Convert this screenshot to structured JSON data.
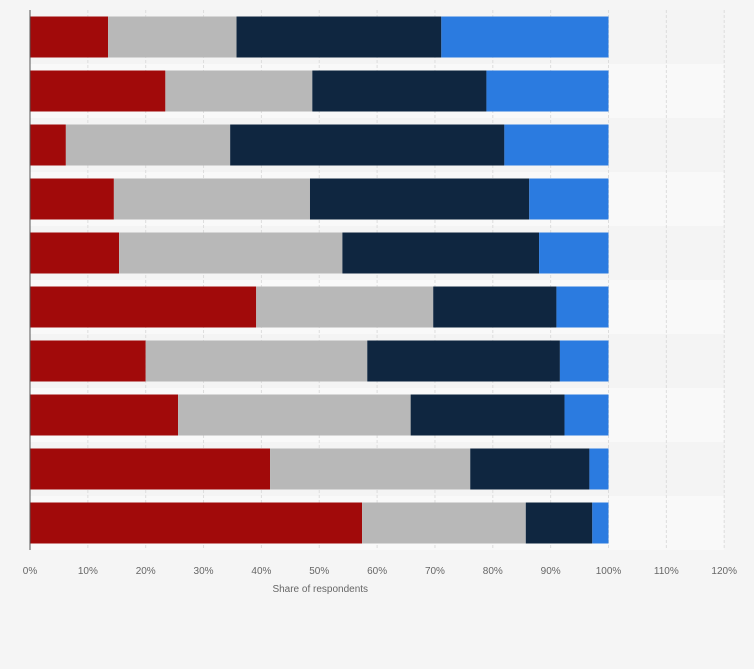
{
  "chart_data": {
    "type": "bar",
    "orientation": "horizontal",
    "stacked": true,
    "title": "",
    "xlabel": "Share of respondents",
    "ylabel": "",
    "xlim": [
      0,
      120
    ],
    "ticks": [
      0,
      10,
      20,
      30,
      40,
      50,
      60,
      70,
      80,
      90,
      100,
      110,
      120
    ],
    "tick_labels": [
      "0%",
      "10%",
      "20%",
      "30%",
      "40%",
      "50%",
      "60%",
      "70%",
      "80%",
      "90%",
      "100%",
      "110%",
      "120%"
    ],
    "categories": [
      "",
      "",
      "",
      "",
      "",
      "",
      "",
      "",
      "",
      ""
    ],
    "series": [
      {
        "name": "",
        "color": "#a10a0a",
        "values": [
          13.5,
          23.4,
          6.2,
          14.5,
          15.4,
          39.1,
          20.0,
          25.6,
          41.5,
          57.4
        ]
      },
      {
        "name": "",
        "color": "#b8b8b8",
        "values": [
          22.2,
          25.4,
          28.4,
          33.9,
          38.6,
          30.6,
          38.3,
          40.2,
          34.6,
          28.3
        ]
      },
      {
        "name": "",
        "color": "#0f2640",
        "values": [
          35.4,
          30.1,
          47.4,
          37.9,
          34.0,
          21.3,
          33.3,
          26.6,
          20.6,
          11.5
        ]
      },
      {
        "name": "",
        "color": "#2b7be0",
        "values": [
          28.9,
          21.1,
          18.0,
          13.7,
          12.0,
          9.0,
          8.4,
          7.6,
          3.3,
          2.8
        ]
      }
    ],
    "grid": true
  }
}
